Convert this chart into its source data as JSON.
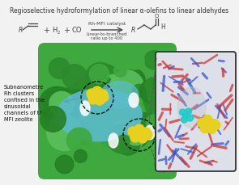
{
  "bg_color": "#f2f2f2",
  "title": "Regioselective hydroformylation of linear α-olefins to linear aldehydes",
  "title_fontsize": 5.5,
  "catalyst_label": "Rh-MFI catalyst",
  "ratio_label": "Linear-to-branched\nratio up to 400",
  "side_text": "Subnanometre\nRh clusters\nconfined in the\nsinusoidal\nchannels of the\nMFI zeolite",
  "green_dark": "#2d8a2d",
  "green_mid": "#3fa83f",
  "green_light": "#5abf5a",
  "teal": "#5bbccc",
  "yellow_rh": "#e8d020",
  "cyan_atom": "#22cccc",
  "red_tube": "#cc3333",
  "blue_tube": "#3355cc",
  "inset_bg": "#dde0e8"
}
